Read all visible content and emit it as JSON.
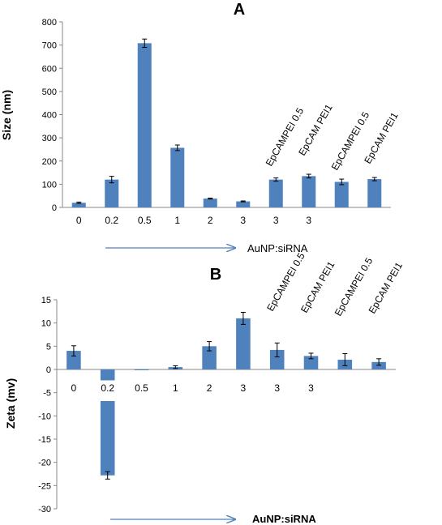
{
  "chart_data": [
    {
      "type": "bar",
      "title": "A",
      "ylabel": "Size (nm)",
      "xlabel": "AuNP:siRNA",
      "ylim": [
        0,
        800
      ],
      "yticks": [
        "0",
        "100",
        "200",
        "300",
        "400",
        "500",
        "600",
        "700",
        "800"
      ],
      "categories": [
        "0",
        "0.2",
        "0.5",
        "1",
        "2",
        "3",
        "3",
        "3",
        "",
        ""
      ],
      "annotations": [
        "",
        "",
        "",
        "",
        "",
        "",
        "EpCAMPEI 0.5",
        "EpCAM PEI1",
        "EpCAMPEI 0.5",
        "EpCAM PEI1"
      ],
      "values": [
        20,
        120,
        708,
        257,
        38,
        26,
        120,
        135,
        110,
        122
      ],
      "errors": [
        3,
        14,
        18,
        12,
        2,
        2,
        7,
        8,
        12,
        7
      ],
      "color": "#4f81bd",
      "grid": false
    },
    {
      "type": "bar",
      "title": "B",
      "ylabel": "Zeta (mv)",
      "xlabel": "AuNP:siRNA",
      "ylim": [
        -30,
        15
      ],
      "yticks": [
        "-30",
        "-25",
        "-20",
        "-15",
        "-10",
        "-5",
        "0",
        "5",
        "10",
        "15"
      ],
      "categories": [
        "0",
        "0.2",
        "0.5",
        "1",
        "2",
        "3",
        "3",
        "3",
        "",
        ""
      ],
      "annotations": [
        "",
        "",
        "",
        "",
        "",
        "",
        "EpCAMPEI 0.5",
        "EpCAM PEI1",
        "EpCAMPEI 0.5",
        "EpCAM PEI1"
      ],
      "values": [
        4,
        -22.8,
        -0.1,
        0.5,
        5,
        11,
        4.2,
        2.9,
        2.1,
        1.6
      ],
      "errors": [
        1.1,
        0.8,
        0,
        0.3,
        1,
        1.3,
        1.5,
        0.6,
        1.3,
        0.7
      ],
      "color": "#4f81bd",
      "grid": false
    }
  ]
}
